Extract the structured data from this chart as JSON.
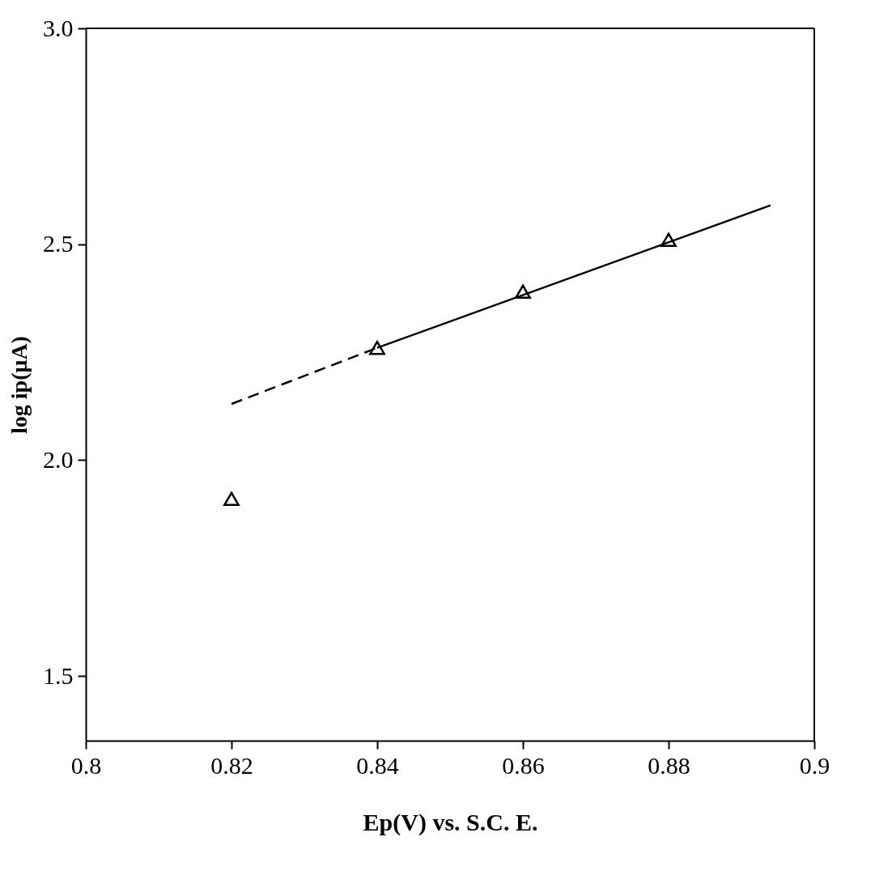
{
  "chart_data": {
    "type": "scatter",
    "xlabel": "Ep(V) vs. S.C. E.",
    "ylabel": "log ip(μA)",
    "xlim": [
      0.8,
      0.9
    ],
    "ylim": [
      1.35,
      3.0
    ],
    "xticks": [
      0.8,
      0.82,
      0.84,
      0.86,
      0.88,
      0.9
    ],
    "yticks": [
      1.5,
      {
        "value": 2.0,
        "label": "2.0"
      },
      2.5,
      {
        "value": 3.0,
        "label": "3.0"
      }
    ],
    "grid": false,
    "series": [
      {
        "type": "scatter",
        "color": "#000000",
        "marker": "triangle",
        "x": [
          0.82,
          0.84,
          0.86,
          0.88
        ],
        "values": [
          1.91,
          2.26,
          2.39,
          2.51
        ]
      },
      {
        "type": "line",
        "color": "#000000",
        "line_style": "dashed",
        "x": [
          0.82,
          0.84
        ],
        "values": [
          2.13,
          2.26
        ]
      },
      {
        "type": "line",
        "color": "#000000",
        "line_style": "solid",
        "x": [
          0.84,
          0.894
        ],
        "values": [
          2.26,
          2.59
        ]
      }
    ]
  }
}
